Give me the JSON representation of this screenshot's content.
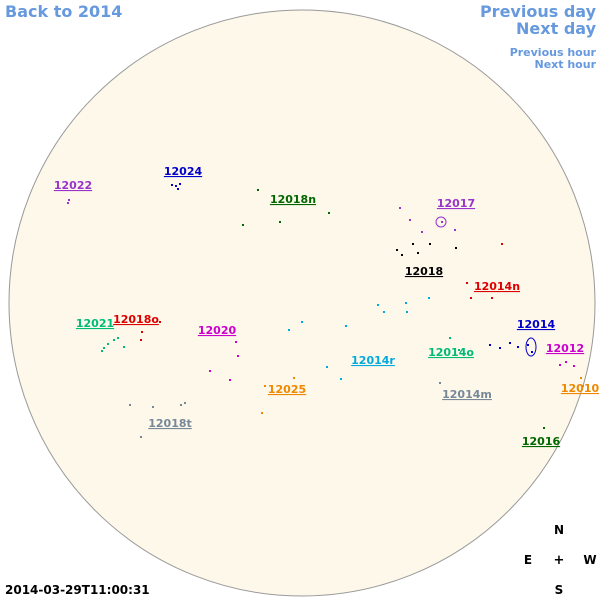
{
  "nav": {
    "back": "Back to 2014",
    "previous_day": "Previous day",
    "next_day": "Next day",
    "previous_hour": "Previous hour",
    "next_hour": "Next hour"
  },
  "regions": [
    {
      "label": "12022",
      "color": "#9933cc"
    },
    {
      "label": "12024",
      "color": "#0000cc"
    },
    {
      "label": "12018n",
      "color": "#006600"
    },
    {
      "label": "12017",
      "color": "#9933cc"
    },
    {
      "label": "12018",
      "color": "#000000"
    },
    {
      "label": "12014n",
      "color": "#dd0000"
    },
    {
      "label": "12021",
      "color": "#00bb77"
    },
    {
      "label": "12018o",
      "color": "#dd0000"
    },
    {
      "label": "12020",
      "color": "#cc00cc"
    },
    {
      "label": "12014",
      "color": "#0000cc"
    },
    {
      "label": "12012",
      "color": "#cc00cc"
    },
    {
      "label": "12014o",
      "color": "#00bb77"
    },
    {
      "label": "12014r",
      "color": "#00aadd"
    },
    {
      "label": "12025",
      "color": "#ee8800"
    },
    {
      "label": "12010",
      "color": "#ee8800"
    },
    {
      "label": "12014m",
      "color": "#778899"
    },
    {
      "label": "12018t",
      "color": "#778899"
    },
    {
      "label": "12016",
      "color": "#006600"
    }
  ],
  "timestamp": "2014-03-29T11:00:31",
  "compass": {
    "north": "N",
    "east": "E",
    "center": "+",
    "west": "W",
    "south": "S"
  }
}
